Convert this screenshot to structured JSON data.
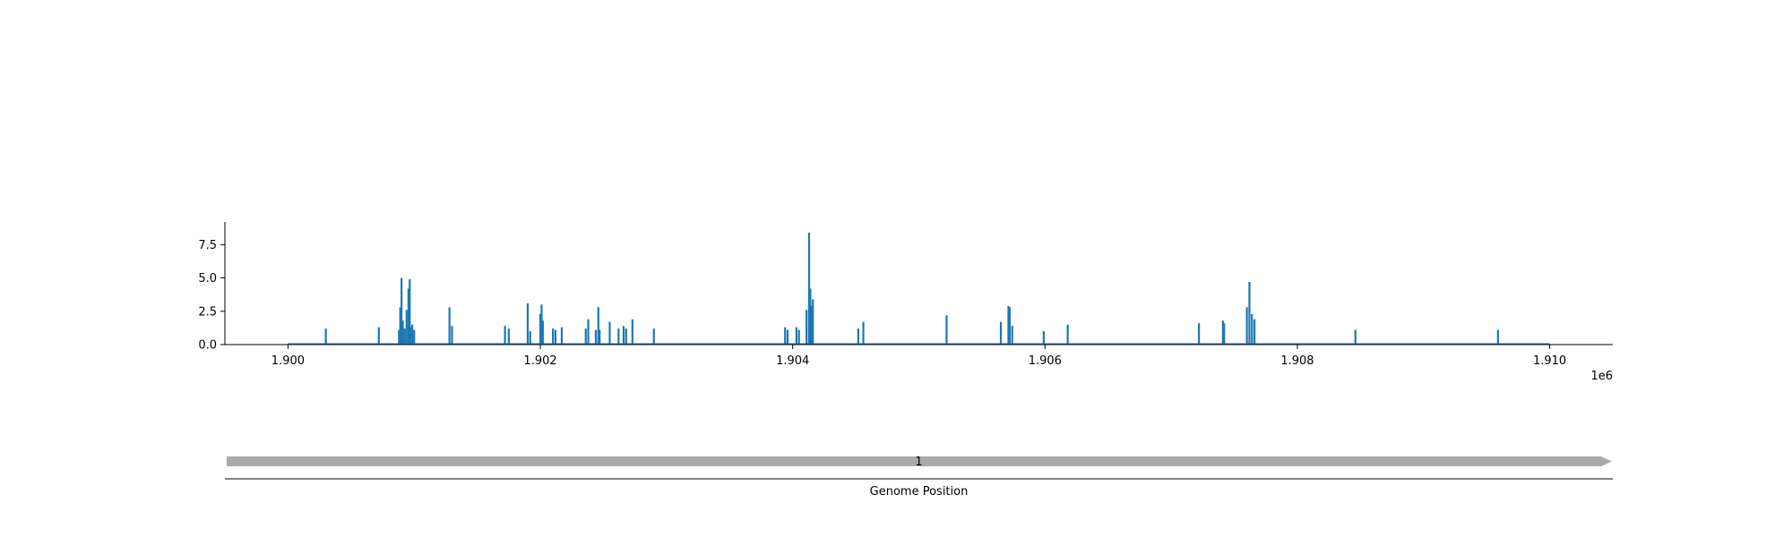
{
  "chart_data": [
    {
      "type": "line",
      "title": "",
      "xlabel": "",
      "ylabel": "",
      "xlim": [
        1899500,
        1910500
      ],
      "ylim": [
        0,
        9.2
      ],
      "x_ticks": [
        {
          "value": 1900000,
          "label": "1.900"
        },
        {
          "value": 1902000,
          "label": "1.902"
        },
        {
          "value": 1904000,
          "label": "1.904"
        },
        {
          "value": 1906000,
          "label": "1.906"
        },
        {
          "value": 1908000,
          "label": "1.908"
        },
        {
          "value": 1910000,
          "label": "1.910"
        }
      ],
      "x_offset_label": "1e6",
      "y_ticks": [
        {
          "value": 0.0,
          "label": "0.0"
        },
        {
          "value": 2.5,
          "label": "2.5"
        },
        {
          "value": 5.0,
          "label": "5.0"
        },
        {
          "value": 7.5,
          "label": "7.5"
        }
      ],
      "baseline": {
        "x": [
          1900000,
          1910000
        ],
        "y": 0
      },
      "color": "#1f77b4",
      "grid": false,
      "series": [
        {
          "x": [
            1900300,
            1900720,
            1900880,
            1900890,
            1900900,
            1900910,
            1900925,
            1900940,
            1900955,
            1900965,
            1900975,
            1900985,
            1901000,
            1901280,
            1901300,
            1901720,
            1901750,
            1901900,
            1901920,
            1902000,
            1902010,
            1902020,
            1902100,
            1902120,
            1902170,
            1902360,
            1902380,
            1902440,
            1902460,
            1902470,
            1902550,
            1902620,
            1902660,
            1902680,
            1902730,
            1902900,
            1903940,
            1903960,
            1904030,
            1904050,
            1904110,
            1904130,
            1904140,
            1904150,
            1904160,
            1904520,
            1904560,
            1905220,
            1905650,
            1905710,
            1905720,
            1905740,
            1905990,
            1906180,
            1907220,
            1907410,
            1907420,
            1907600,
            1907620,
            1907640,
            1907660,
            1908460,
            1909590
          ],
          "y": [
            1.2,
            1.3,
            1.1,
            2.8,
            5.0,
            1.8,
            1.2,
            2.6,
            4.2,
            4.9,
            1.3,
            1.5,
            1.1,
            2.8,
            1.4,
            1.4,
            1.2,
            3.1,
            1.0,
            2.3,
            3.0,
            1.8,
            1.2,
            1.1,
            1.3,
            1.2,
            1.9,
            1.1,
            2.8,
            1.1,
            1.7,
            1.2,
            1.4,
            1.2,
            1.9,
            1.2,
            1.3,
            1.1,
            1.3,
            1.1,
            2.6,
            8.4,
            4.2,
            2.9,
            3.4,
            1.2,
            1.7,
            2.2,
            1.7,
            2.9,
            2.8,
            1.4,
            1.0,
            1.5,
            1.6,
            1.8,
            1.6,
            2.8,
            4.7,
            2.3,
            1.9,
            1.1,
            1.1
          ]
        }
      ]
    },
    {
      "type": "bar",
      "xlabel": "Genome Position",
      "tracks": [
        {
          "label": "1",
          "start": 1899500,
          "end": 1910500,
          "color": "#aaaaaa",
          "direction": "forward"
        }
      ]
    }
  ]
}
